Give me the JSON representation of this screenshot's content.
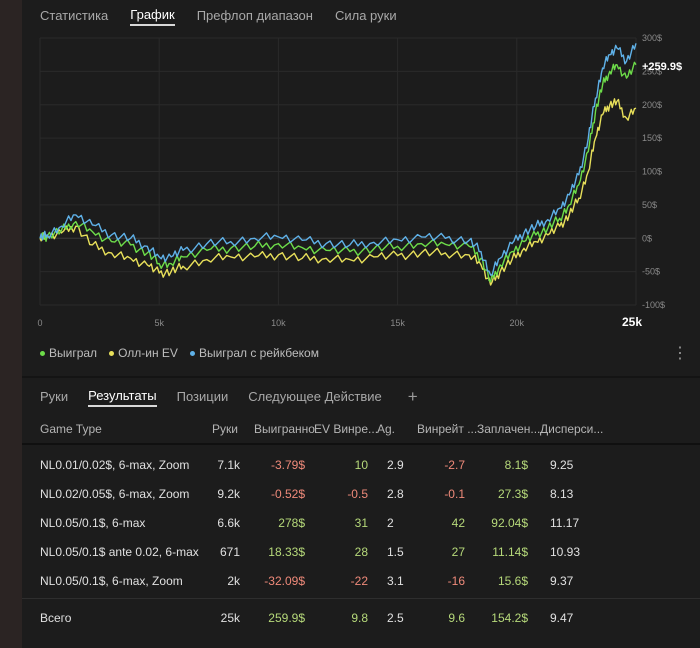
{
  "top_tabs": [
    "Статистика",
    "График",
    "Префлоп диапазон",
    "Сила руки"
  ],
  "chart_data": {
    "type": "line",
    "x_ticks": [
      "0",
      "5k",
      "10k",
      "15k",
      "20k",
      "25k"
    ],
    "y_ticks": [
      "300$",
      "250$",
      "200$",
      "150$",
      "100$",
      "50$",
      "0$",
      "-50$",
      "-100$"
    ],
    "xlim": [
      0,
      25000
    ],
    "ylim": [
      -100,
      300
    ],
    "grid": true,
    "end_label": "+259.9$",
    "series": [
      {
        "name": "Выиграл",
        "color": "#6ddc49",
        "x": [
          0,
          300,
          900,
          1500,
          2200,
          3000,
          3800,
          4500,
          5000,
          5500,
          6000,
          7000,
          8000,
          9000,
          10000,
          11000,
          12000,
          13000,
          14000,
          15000,
          16000,
          17000,
          18000,
          18500,
          18900,
          19300,
          19800,
          20300,
          20800,
          21300,
          21800,
          22200,
          22600,
          23000,
          23300,
          23600,
          23900,
          24200,
          24600,
          25000
        ],
        "y": [
          0,
          3,
          12,
          25,
          10,
          -5,
          -10,
          -22,
          -38,
          -38,
          -28,
          -18,
          -15,
          -12,
          -8,
          -14,
          -18,
          -20,
          -16,
          -12,
          -8,
          -9,
          -12,
          -30,
          -65,
          -40,
          -20,
          -5,
          5,
          15,
          30,
          50,
          80,
          130,
          190,
          230,
          250,
          260,
          240,
          260
        ]
      },
      {
        "name": "Олл-ин EV",
        "color": "#e8e05a",
        "x": [
          0,
          300,
          900,
          1500,
          2200,
          3000,
          3800,
          4500,
          5000,
          5500,
          6000,
          7000,
          8000,
          9000,
          10000,
          11000,
          12000,
          13000,
          14000,
          15000,
          16000,
          17000,
          18000,
          18500,
          18900,
          19300,
          19800,
          20300,
          20800,
          21300,
          21800,
          22200,
          22600,
          23000,
          23300,
          23600,
          23900,
          24200,
          24600,
          25000
        ],
        "y": [
          0,
          2,
          8,
          18,
          -10,
          -22,
          -30,
          -40,
          -52,
          -50,
          -42,
          -32,
          -28,
          -28,
          -25,
          -30,
          -30,
          -32,
          -28,
          -26,
          -22,
          -22,
          -25,
          -40,
          -70,
          -50,
          -32,
          -15,
          -5,
          5,
          18,
          35,
          60,
          100,
          150,
          185,
          200,
          205,
          180,
          195
        ]
      },
      {
        "name": "Выиграл с рейкбеком",
        "color": "#5fb1e8",
        "x": [
          0,
          300,
          900,
          1500,
          2200,
          3000,
          3800,
          4500,
          5000,
          5500,
          6000,
          7000,
          8000,
          9000,
          10000,
          11000,
          12000,
          13000,
          14000,
          15000,
          16000,
          17000,
          18000,
          18500,
          18900,
          19300,
          19800,
          20300,
          20800,
          21300,
          21800,
          22200,
          22600,
          23000,
          23300,
          23600,
          23900,
          24200,
          24600,
          25000
        ],
        "y": [
          0,
          5,
          18,
          35,
          20,
          5,
          0,
          -12,
          -28,
          -28,
          -18,
          -8,
          -5,
          0,
          2,
          -3,
          -8,
          -10,
          -6,
          -2,
          2,
          0,
          -3,
          -20,
          -55,
          -30,
          -8,
          8,
          18,
          28,
          45,
          65,
          95,
          150,
          210,
          255,
          275,
          285,
          265,
          292
        ]
      }
    ]
  },
  "legend": [
    "Выиграл",
    "Олл-ин EV",
    "Выиграл с рейкбеком"
  ],
  "colors": {
    "won": "#6ddc49",
    "allin": "#e8e05a",
    "rakeback": "#5fb1e8",
    "positive": "#b6d97a",
    "negative": "#ef8a7a"
  },
  "bottom_tabs": [
    "Руки",
    "Результаты",
    "Позиции",
    "Следующее Действие"
  ],
  "table": {
    "headers": [
      "Game Type",
      "Руки",
      "Выигранно",
      "EV Винре...",
      "Ag.",
      "Винрейт ...",
      "Заплачен...",
      "Дисперси..."
    ],
    "rows": [
      [
        "NL0.01/0.02$, 6-max, Zoom",
        "7.1k",
        "-3.79$",
        "10",
        "2.9",
        "-2.7",
        "8.1$",
        "9.25"
      ],
      [
        "NL0.02/0.05$, 6-max, Zoom",
        "9.2k",
        "-0.52$",
        "-0.5",
        "2.8",
        "-0.1",
        "27.3$",
        "8.13"
      ],
      [
        "NL0.05/0.1$, 6-max",
        "6.6k",
        "278$",
        "31",
        "2",
        "42",
        "92.04$",
        "11.17"
      ],
      [
        "NL0.05/0.1$ ante 0.02, 6-max",
        "671",
        "18.33$",
        "28",
        "1.5",
        "27",
        "11.14$",
        "10.93"
      ],
      [
        "NL0.05/0.1$, 6-max, Zoom",
        "2k",
        "-32.09$",
        "-22",
        "3.1",
        "-16",
        "15.6$",
        "9.37"
      ]
    ],
    "total": [
      "Всего",
      "25k",
      "259.9$",
      "9.8",
      "2.5",
      "9.6",
      "154.2$",
      "9.47"
    ]
  }
}
